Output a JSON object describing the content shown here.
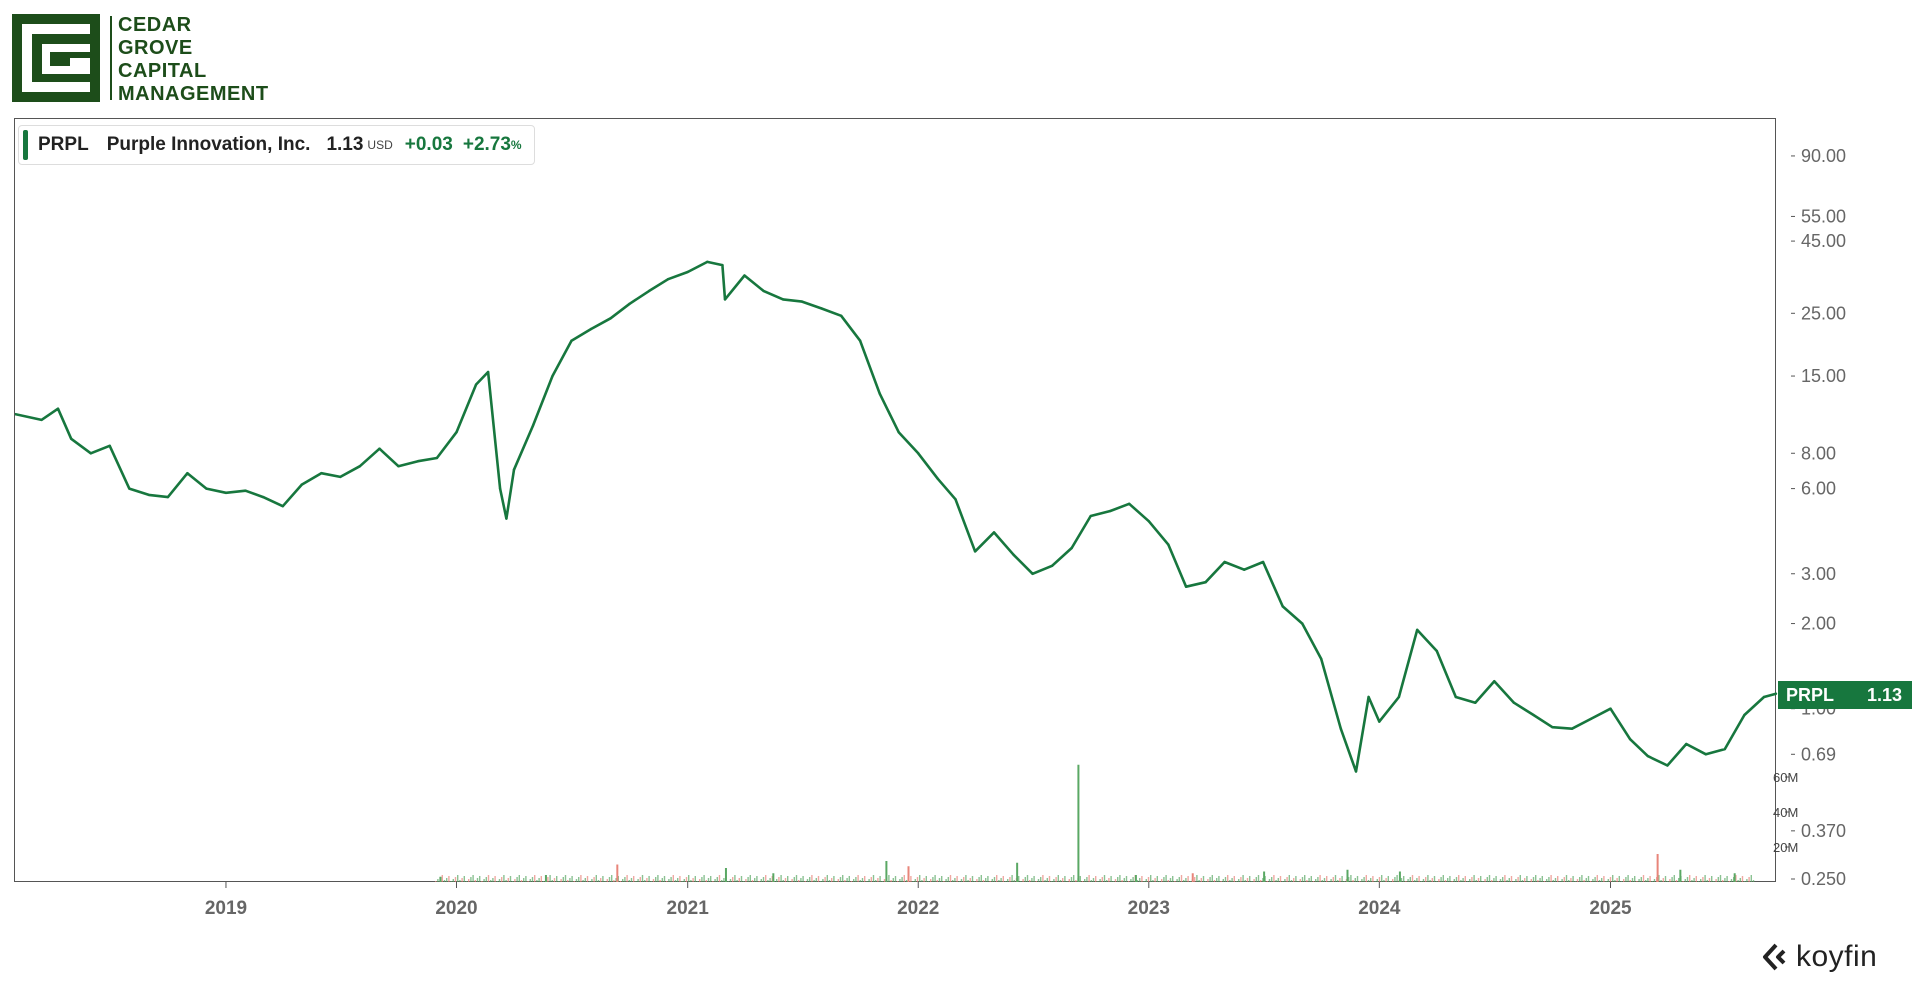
{
  "logo": {
    "lines": [
      "CEDAR",
      "GROVE",
      "CAPITAL",
      "MANAGEMENT"
    ],
    "icon": "cg-square-logo-icon",
    "color": "#1d4d1a"
  },
  "legend": {
    "ticker": "PRPL",
    "name": "Purple Innovation, Inc.",
    "price": "1.13",
    "currency": "USD",
    "change": "+0.03",
    "change_pct": "+2.73",
    "pct_sign": "%"
  },
  "price_tag": {
    "ticker": "PRPL",
    "value": "1.13"
  },
  "brand": {
    "name": "koyfin",
    "icon": "koyfin-logo-icon"
  },
  "colors": {
    "line": "#17773e",
    "volume_up": "#5aa864",
    "volume_down": "#e8857a",
    "axis_text": "#666666"
  },
  "chart_data": {
    "type": "line",
    "title": "",
    "xlabel": "",
    "ylabel": "",
    "y_scale": "log",
    "ylim": [
      0.25,
      100
    ],
    "xlim": [
      "2018-02-01",
      "2025-09-20"
    ],
    "x_ticks": [
      "2019",
      "2020",
      "2021",
      "2022",
      "2023",
      "2024",
      "2025"
    ],
    "y_ticks": [
      "90.00",
      "55.00",
      "45.00",
      "25.00",
      "15.00",
      "8.00",
      "6.00",
      "3.00",
      "2.00",
      "1.00",
      "0.69",
      "0.370",
      "0.250"
    ],
    "grid": false,
    "series": [
      {
        "name": "PRPL",
        "x": [
          "2018-02-01",
          "2018-03-15",
          "2018-04-10",
          "2018-05-01",
          "2018-06-01",
          "2018-07-01",
          "2018-08-01",
          "2018-09-01",
          "2018-10-01",
          "2018-11-01",
          "2018-12-01",
          "2019-01-01",
          "2019-02-01",
          "2019-03-01",
          "2019-04-01",
          "2019-05-01",
          "2019-06-01",
          "2019-07-01",
          "2019-08-01",
          "2019-09-01",
          "2019-10-01",
          "2019-11-01",
          "2019-12-01",
          "2020-01-01",
          "2020-02-01",
          "2020-02-20",
          "2020-03-10",
          "2020-03-20",
          "2020-04-01",
          "2020-05-01",
          "2020-06-01",
          "2020-07-01",
          "2020-08-01",
          "2020-09-01",
          "2020-10-01",
          "2020-11-01",
          "2020-12-01",
          "2021-01-01",
          "2021-02-01",
          "2021-02-25",
          "2021-03-01",
          "2021-04-01",
          "2021-05-01",
          "2021-06-01",
          "2021-07-01",
          "2021-08-01",
          "2021-09-01",
          "2021-10-01",
          "2021-11-01",
          "2021-12-01",
          "2022-01-01",
          "2022-02-01",
          "2022-03-01",
          "2022-04-01",
          "2022-05-01",
          "2022-06-01",
          "2022-07-01",
          "2022-08-01",
          "2022-09-01",
          "2022-10-01",
          "2022-11-01",
          "2022-12-01",
          "2023-01-01",
          "2023-02-01",
          "2023-03-01",
          "2023-04-01",
          "2023-05-01",
          "2023-06-01",
          "2023-07-01",
          "2023-08-01",
          "2023-09-01",
          "2023-10-01",
          "2023-11-01",
          "2023-11-25",
          "2023-12-15",
          "2024-01-01",
          "2024-02-01",
          "2024-03-01",
          "2024-04-01",
          "2024-05-01",
          "2024-06-01",
          "2024-07-01",
          "2024-08-01",
          "2024-09-01",
          "2024-10-01",
          "2024-11-01",
          "2024-12-01",
          "2025-01-01",
          "2025-02-01",
          "2025-03-01",
          "2025-04-01",
          "2025-05-01",
          "2025-06-01",
          "2025-07-01",
          "2025-08-01",
          "2025-09-01",
          "2025-09-20"
        ],
        "values": [
          11.0,
          10.5,
          11.5,
          9.0,
          8.0,
          8.5,
          6.0,
          5.7,
          5.6,
          6.8,
          6.0,
          5.8,
          5.9,
          5.6,
          5.2,
          6.2,
          6.8,
          6.6,
          7.2,
          8.3,
          7.2,
          7.5,
          7.7,
          9.5,
          14.0,
          15.5,
          6.0,
          4.7,
          7.0,
          10.0,
          15.0,
          20.0,
          22.0,
          24.0,
          27.0,
          30.0,
          33.0,
          35.0,
          38.0,
          37.0,
          28.0,
          34.0,
          30.0,
          28.0,
          27.5,
          26.0,
          24.5,
          20.0,
          13.0,
          9.5,
          8.0,
          6.5,
          5.5,
          3.6,
          4.2,
          3.5,
          3.0,
          3.2,
          3.7,
          4.8,
          5.0,
          5.3,
          4.6,
          3.8,
          2.7,
          2.8,
          3.3,
          3.1,
          3.3,
          2.3,
          2.0,
          1.5,
          0.85,
          0.6,
          1.1,
          0.9,
          1.1,
          1.9,
          1.6,
          1.1,
          1.05,
          1.25,
          1.05,
          0.95,
          0.86,
          0.85,
          0.92,
          1.0,
          0.78,
          0.68,
          0.63,
          0.75,
          0.69,
          0.72,
          0.95,
          1.1,
          1.13
        ]
      }
    ],
    "volume": {
      "ylim": [
        0,
        80
      ],
      "unit": "M",
      "ticks": [
        "60M",
        "40M",
        "20M"
      ],
      "x": [
        "2019-12-05",
        "2020-05-20",
        "2020-09-10",
        "2021-03-01",
        "2021-05-15",
        "2021-11-10",
        "2021-12-15",
        "2022-06-05",
        "2022-09-10",
        "2022-12-10",
        "2023-03-10",
        "2023-07-01",
        "2023-11-10",
        "2024-02-01",
        "2025-03-15",
        "2025-04-20",
        "2025-07-15"
      ],
      "values": [
        3,
        4,
        10,
        8,
        5,
        12,
        9,
        11,
        67,
        4,
        5,
        6,
        7,
        6,
        16,
        7,
        5
      ]
    }
  }
}
